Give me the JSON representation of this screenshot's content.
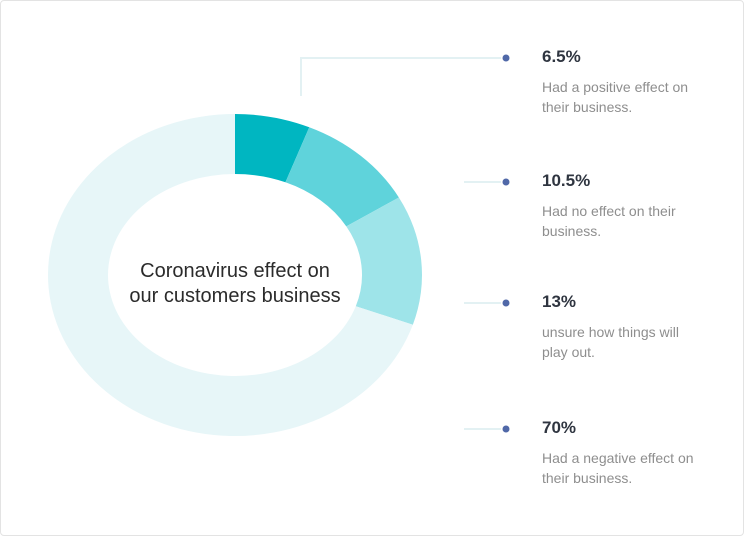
{
  "chart_data": {
    "type": "pie",
    "title": "Coronavirus effect on our customers business",
    "categories": [
      "Had a positive effect on their business.",
      "Had no effect on their business.",
      "unsure how things will play out.",
      "Had a negative effect on their business."
    ],
    "values": [
      6.5,
      10.5,
      13,
      70
    ],
    "value_labels": [
      "6.5%",
      "10.5%",
      "13%",
      "70%"
    ],
    "colors": [
      "#00b6c1",
      "#5fd3db",
      "#9ee4e9",
      "#e7f6f8"
    ]
  }
}
